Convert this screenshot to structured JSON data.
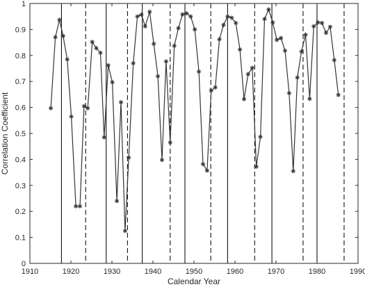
{
  "chart_data": {
    "type": "line",
    "title": "",
    "xlabel": "Calendar Year",
    "ylabel": "Correlation Coefficient",
    "xlim": [
      1910,
      1990
    ],
    "ylim": [
      0,
      1
    ],
    "xticks": [
      "1910",
      "1920",
      "1930",
      "1940",
      "1950",
      "1960",
      "1970",
      "1980",
      "1990"
    ],
    "yticks": [
      "0",
      "0.1",
      "0.2",
      "0.3",
      "0.4",
      "0.5",
      "0.6",
      "0.7",
      "0.8",
      "0.9",
      "1"
    ],
    "grid": false,
    "marker": "asterisk",
    "series": [
      {
        "x": [
          1915.1,
          1916.2,
          1917.2,
          1918.1,
          1919.1,
          1920.1,
          1921.2,
          1922.2,
          1923.2,
          1924.1,
          1925.2,
          1926.2,
          1927.2,
          1928.1,
          1929.1,
          1930.1,
          1931.2,
          1932.2,
          1933.2,
          1934.1,
          1935.2,
          1936.2,
          1937.2,
          1938.1,
          1939.2,
          1940.2,
          1941.2,
          1942.2,
          1943.2,
          1944.2,
          1945.2,
          1946.2,
          1947.2,
          1948.2,
          1949.2,
          1950.2,
          1951.2,
          1952.2,
          1953.2,
          1954.2,
          1955.2,
          1956.2,
          1957.2,
          1958.2,
          1959.2,
          1960.2,
          1961.2,
          1962.2,
          1963.2,
          1964.2,
          1965.2,
          1966.2,
          1967.2,
          1968.2,
          1969.2,
          1970.2,
          1971.2,
          1972.2,
          1973.2,
          1974.2,
          1975.2,
          1976.2,
          1977.2,
          1978.2,
          1979.2,
          1980.2,
          1981.2,
          1982.2,
          1983.2,
          1984.2,
          1985.2
        ],
        "y": [
          0.597,
          0.87,
          0.937,
          0.875,
          0.785,
          0.565,
          0.22,
          0.22,
          0.605,
          0.597,
          0.852,
          0.828,
          0.81,
          0.485,
          0.762,
          0.697,
          0.24,
          0.62,
          0.125,
          0.407,
          0.77,
          0.95,
          0.957,
          0.912,
          0.968,
          0.845,
          0.72,
          0.398,
          0.777,
          0.465,
          0.837,
          0.905,
          0.958,
          0.962,
          0.95,
          0.9,
          0.738,
          0.382,
          0.357,
          0.665,
          0.677,
          0.862,
          0.917,
          0.95,
          0.945,
          0.925,
          0.823,
          0.632,
          0.728,
          0.752,
          0.372,
          0.487,
          0.94,
          0.977,
          0.927,
          0.86,
          0.867,
          0.818,
          0.655,
          0.355,
          0.715,
          0.815,
          0.88,
          0.633,
          0.912,
          0.927,
          0.925,
          0.887,
          0.91,
          0.782,
          0.648
        ]
      }
    ],
    "vlines_solid": [
      1917.7,
      1928.6,
      1937.4,
      1947.8,
      1958.2,
      1969.0,
      1980.0
    ],
    "vlines_dashed": [
      1923.6,
      1933.8,
      1944.2,
      1954.1,
      1964.8,
      1976.6,
      1986.6
    ],
    "colors": {
      "line": "#333333",
      "axis": "#262626",
      "background": "#ffffff"
    }
  }
}
